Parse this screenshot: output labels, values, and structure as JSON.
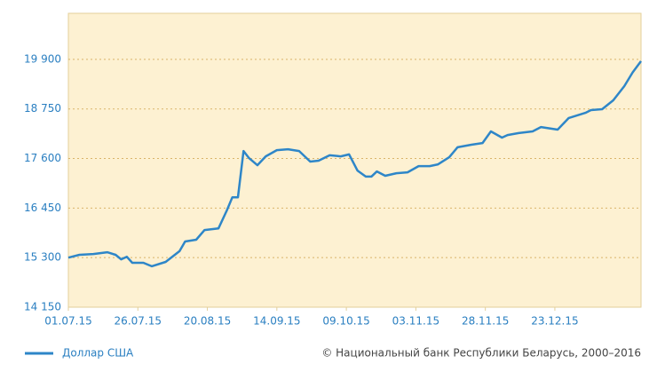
{
  "chart_data": {
    "type": "line",
    "x": [
      "01.07.15",
      "05.07.15",
      "10.07.15",
      "15.07.15",
      "18.07.15",
      "20.07.15",
      "22.07.15",
      "24.07.15",
      "28.07.15",
      "31.07.15",
      "05.08.15",
      "10.08.15",
      "12.08.15",
      "16.08.15",
      "19.08.15",
      "24.08.15",
      "27.08.15",
      "29.08.15",
      "31.08.15",
      "02.09.15",
      "04.09.15",
      "07.09.15",
      "10.09.15",
      "14.09.15",
      "18.09.15",
      "22.09.15",
      "26.09.15",
      "29.09.15",
      "03.10.15",
      "07.10.15",
      "10.10.15",
      "13.10.15",
      "16.10.15",
      "18.10.15",
      "20.10.15",
      "23.10.15",
      "27.10.15",
      "31.10.15",
      "04.11.15",
      "08.11.15",
      "11.11.15",
      "15.11.15",
      "18.11.15",
      "23.11.15",
      "27.11.15",
      "30.11.15",
      "04.12.15",
      "06.12.15",
      "10.12.15",
      "15.12.15",
      "18.12.15",
      "24.12.15",
      "28.12.15",
      "03.01.16",
      "05.01.16",
      "09.01.16",
      "13.01.16",
      "17.01.16",
      "20.01.16",
      "23.01.16"
    ],
    "series": [
      {
        "name": "Доллар США",
        "color": "#2e86c8",
        "values": [
          15300,
          15365,
          15385,
          15425,
          15365,
          15260,
          15320,
          15180,
          15180,
          15100,
          15200,
          15450,
          15675,
          15715,
          15940,
          15980,
          16395,
          16700,
          16700,
          17775,
          17610,
          17445,
          17650,
          17795,
          17815,
          17775,
          17530,
          17550,
          17675,
          17650,
          17695,
          17320,
          17180,
          17180,
          17300,
          17200,
          17260,
          17280,
          17425,
          17425,
          17465,
          17630,
          17860,
          17920,
          17960,
          18230,
          18085,
          18145,
          18190,
          18230,
          18330,
          18270,
          18540,
          18660,
          18725,
          18745,
          18950,
          19280,
          19600,
          19860
        ]
      }
    ],
    "xlim": [
      "01.07.15",
      "23.01.16"
    ],
    "xticks": [
      "01.07.15",
      "26.07.15",
      "20.08.15",
      "14.09.15",
      "09.10.15",
      "03.11.15",
      "28.11.15",
      "23.12.15"
    ],
    "ylim": [
      14150,
      20970
    ],
    "yticks": [
      {
        "value": 14150,
        "label": "14 150"
      },
      {
        "value": 15300,
        "label": "15 300"
      },
      {
        "value": 16450,
        "label": "16 450"
      },
      {
        "value": 17600,
        "label": "17 600"
      },
      {
        "value": 18750,
        "label": "18 750"
      },
      {
        "value": 19900,
        "label": "19 900"
      }
    ],
    "grid": true,
    "copyright": "© Национальный банк Республики Беларусь, 2000–2016"
  }
}
